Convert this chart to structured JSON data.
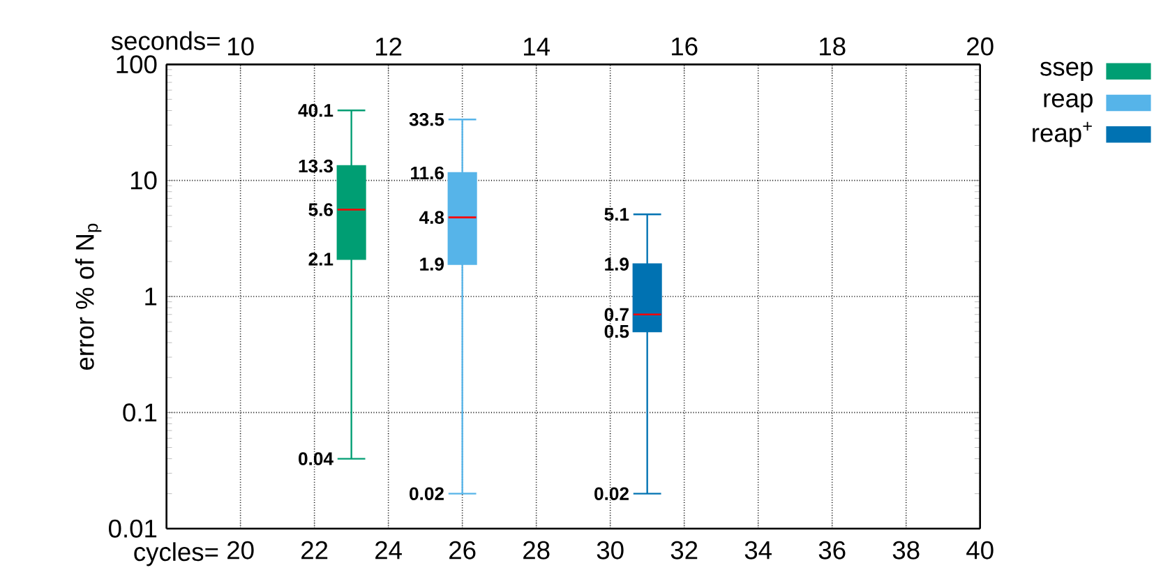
{
  "chart_data": {
    "type": "box",
    "xlabel": "cycles=",
    "x2label": "seconds=",
    "ylabel": "error % of N$_{p}$",
    "xlim": [
      18,
      40
    ],
    "xticks": [
      20,
      22,
      24,
      26,
      28,
      30,
      32,
      34,
      36,
      38,
      40
    ],
    "x2lim": [
      9,
      20
    ],
    "x2ticks": [
      10,
      12,
      14,
      16,
      18,
      20
    ],
    "ylim": [
      0.01,
      100
    ],
    "yticks": [
      0.01,
      0.1,
      1,
      10,
      100
    ],
    "log": "y",
    "grid": true,
    "legend": "top right",
    "series": [
      {
        "name": "ssep",
        "color": "#009e73",
        "x": [
          23
        ],
        "boxes": [
          {
            "low": 0.04,
            "q1": 2.1,
            "median": 5.6,
            "q3": 13.3,
            "high": 40.1
          }
        ]
      },
      {
        "name": "reap",
        "color": "#56b4e9",
        "x": [
          26
        ],
        "boxes": [
          {
            "low": 0.02,
            "q1": 1.9,
            "median": 4.8,
            "q3": 11.6,
            "high": 33.5
          }
        ]
      },
      {
        "name": "reap$^{+}$",
        "color": "#0072b2",
        "x": [
          31
        ],
        "boxes": [
          {
            "low": 0.02,
            "q1": 0.5,
            "median": 0.7,
            "q3": 1.9,
            "high": 5.1
          }
        ]
      }
    ],
    "annotations": [
      {
        "text": "0.04",
        "x": 23,
        "y": 0.04
      },
      {
        "text": "2.1",
        "x": 23,
        "y": 2.1
      },
      {
        "text": "5.6",
        "x": 23,
        "y": 5.6
      },
      {
        "text": "13.3",
        "x": 23,
        "y": 13.3
      },
      {
        "text": "40.1",
        "x": 23,
        "y": 40.1
      },
      {
        "text": "0.02",
        "x": 26,
        "y": 0.02
      },
      {
        "text": "1.9",
        "x": 26,
        "y": 1.9
      },
      {
        "text": "4.8",
        "x": 26,
        "y": 4.8
      },
      {
        "text": "11.6",
        "x": 26,
        "y": 11.6
      },
      {
        "text": "33.5",
        "x": 26,
        "y": 33.5
      },
      {
        "text": "0.02",
        "x": 31,
        "y": 0.02
      },
      {
        "text": "0.5",
        "x": 31,
        "y": 0.5
      },
      {
        "text": "0.7",
        "x": 31,
        "y": 0.7
      },
      {
        "text": "1.9",
        "x": 31,
        "y": 1.9
      },
      {
        "text": "5.1",
        "x": 31,
        "y": 5.1
      }
    ]
  }
}
